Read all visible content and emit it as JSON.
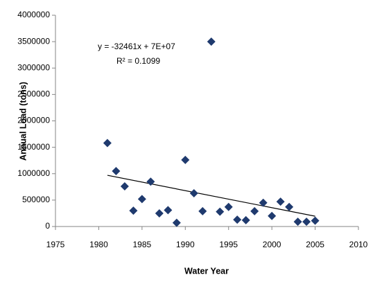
{
  "chart_data": {
    "type": "scatter",
    "x_label": "Water Year",
    "y_label": "Annual Load (tons)",
    "annotations": [
      "y = -32461x + 7E+07",
      "R² = 0.1099"
    ],
    "series": [
      {
        "color": "#1f3a6e",
        "x": [
          1981,
          1982,
          1983,
          1984,
          1985,
          1986,
          1987,
          1988,
          1989,
          1990,
          1991,
          1992,
          1993,
          1994,
          1995,
          1996,
          1997,
          1998,
          1999,
          2000,
          2001,
          2002,
          2003,
          2004,
          2005
        ],
        "values": [
          1580000,
          1050000,
          760000,
          300000,
          520000,
          850000,
          250000,
          310000,
          70000,
          1260000,
          630000,
          290000,
          3500000,
          280000,
          370000,
          130000,
          120000,
          290000,
          450000,
          200000,
          470000,
          370000,
          90000,
          90000,
          110000
        ]
      }
    ],
    "trendline": {
      "color": "#000000",
      "x": [
        1981,
        2005
      ],
      "values": [
        970000,
        195000
      ]
    },
    "xlim": [
      1975,
      2010
    ],
    "xticks": [
      1975,
      1980,
      1985,
      1990,
      1995,
      2000,
      2005,
      2010
    ],
    "ylim": [
      0,
      4000000
    ],
    "yticks": [
      0,
      500000,
      1000000,
      1500000,
      2000000,
      2500000,
      3000000,
      3500000,
      4000000
    ],
    "grid": false
  }
}
